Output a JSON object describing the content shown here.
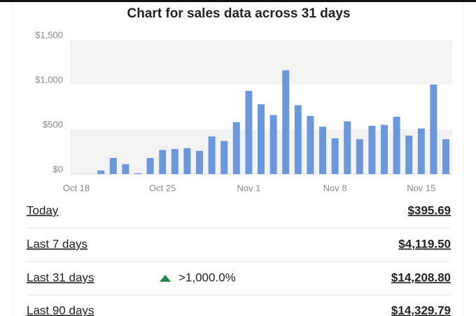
{
  "chart_data": {
    "type": "bar",
    "title": "Chart for sales data across 31 days",
    "categories": [
      "Oct 18",
      null,
      null,
      null,
      null,
      null,
      null,
      "Oct 25",
      null,
      null,
      null,
      null,
      null,
      null,
      "Nov 1",
      null,
      null,
      null,
      null,
      null,
      null,
      "Nov 8",
      null,
      null,
      null,
      null,
      null,
      null,
      "Nov 15",
      null,
      null
    ],
    "values": [
      0,
      0,
      40,
      180,
      110,
      10,
      180,
      270,
      280,
      290,
      260,
      420,
      370,
      580,
      930,
      780,
      660,
      1160,
      770,
      650,
      530,
      400,
      590,
      390,
      540,
      550,
      640,
      430,
      510,
      1000,
      390
    ],
    "color": "#6b97dc",
    "ylim": [
      0,
      1500
    ],
    "yticks": [
      {
        "value": 0,
        "label": "$0"
      },
      {
        "value": 500,
        "label": "$500"
      },
      {
        "value": 1000,
        "label": "$1,000"
      },
      {
        "value": 1500,
        "label": "$1,500"
      }
    ]
  },
  "summary": {
    "rows": [
      {
        "label": "Today",
        "amount": "$395.69"
      },
      {
        "label": "Last 7 days",
        "amount": "$4,119.50"
      },
      {
        "label": "Last 31 days",
        "change": ">1,000.0%",
        "amount": "$14,208.80"
      },
      {
        "label": "Last 90 days",
        "amount": "$14,329.79"
      }
    ]
  }
}
